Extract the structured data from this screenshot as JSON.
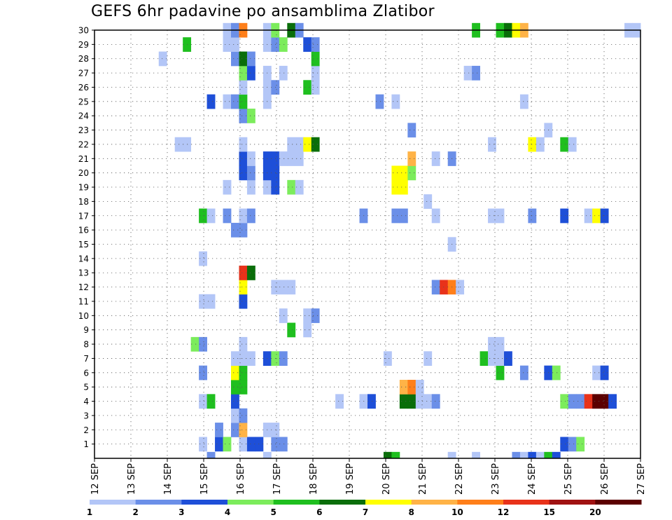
{
  "chart_data": {
    "type": "heatmap",
    "title": "GEFS 6hr padavine po ansamblima Zlatibor",
    "xlabel": "",
    "ylabel": "",
    "y_tick_labels": [
      "1",
      "2",
      "3",
      "4",
      "5",
      "6",
      "7",
      "8",
      "9",
      "10",
      "11",
      "12",
      "13",
      "14",
      "15",
      "16",
      "17",
      "18",
      "19",
      "20",
      "21",
      "22",
      "23",
      "24",
      "25",
      "26",
      "27",
      "28",
      "29",
      "30"
    ],
    "x_tick_labels": [
      "12 SEP",
      "13 SEP",
      "14 SEP",
      "15 SEP",
      "16 SEP",
      "17 SEP",
      "18 SEP",
      "19 SEP",
      "20 SEP",
      "21 SEP",
      "22 SEP",
      "23 SEP",
      "24 SEP",
      "25 SEP",
      "26 SEP",
      "27 SEP"
    ],
    "x_range": [
      "12 SEP 00Z",
      "27 SEP 00Z"
    ],
    "x_step_hours": 6,
    "y_range": [
      0,
      30
    ],
    "grid": true,
    "grid_style": "dotted",
    "legend": "colorbar-bottom",
    "colorbar": {
      "labels": [
        "1",
        "2",
        "3",
        "4",
        "5",
        "6",
        "7",
        "8",
        "10",
        "12",
        "15",
        "20"
      ],
      "colors": [
        "#b3c6f7",
        "#6b8fe8",
        "#1e4fd8",
        "#7cec5c",
        "#1fbf1f",
        "#0a6e0a",
        "#ffff00",
        "#ffb347",
        "#ff7f1a",
        "#e8321a",
        "#a01212",
        "#5c0000"
      ]
    },
    "cell_value_key": "class index into colorbar.colors (0 = 1-2 mm, 11 = >20 mm)",
    "cells": [
      [
        13,
        1,
        0
      ],
      [
        15,
        1,
        2
      ],
      [
        16,
        1,
        3
      ],
      [
        18,
        1,
        0
      ],
      [
        19,
        1,
        2
      ],
      [
        20,
        1,
        2
      ],
      [
        22,
        1,
        1
      ],
      [
        23,
        1,
        1
      ],
      [
        58,
        1,
        2
      ],
      [
        59,
        1,
        1
      ],
      [
        60,
        1,
        3
      ],
      [
        71,
        1,
        0
      ],
      [
        72,
        1,
        1
      ],
      [
        15,
        2,
        1
      ],
      [
        17,
        2,
        1
      ],
      [
        18,
        2,
        7
      ],
      [
        21,
        2,
        0
      ],
      [
        22,
        2,
        0
      ],
      [
        17,
        3,
        0
      ],
      [
        18,
        3,
        1
      ],
      [
        13,
        4,
        0
      ],
      [
        14,
        4,
        4
      ],
      [
        17,
        4,
        2
      ],
      [
        30,
        4,
        0
      ],
      [
        33,
        4,
        0
      ],
      [
        34,
        4,
        2
      ],
      [
        38,
        4,
        5
      ],
      [
        39,
        4,
        5
      ],
      [
        40,
        4,
        0
      ],
      [
        41,
        4,
        0
      ],
      [
        42,
        4,
        1
      ],
      [
        58,
        4,
        3
      ],
      [
        59,
        4,
        1
      ],
      [
        60,
        4,
        1
      ],
      [
        61,
        4,
        9
      ],
      [
        62,
        4,
        11
      ],
      [
        63,
        4,
        11
      ],
      [
        64,
        4,
        2
      ],
      [
        17,
        5,
        4
      ],
      [
        18,
        5,
        4
      ],
      [
        38,
        5,
        7
      ],
      [
        39,
        5,
        8
      ],
      [
        40,
        5,
        0
      ],
      [
        13,
        6,
        1
      ],
      [
        17,
        6,
        6
      ],
      [
        18,
        6,
        4
      ],
      [
        50,
        6,
        4
      ],
      [
        53,
        6,
        1
      ],
      [
        56,
        6,
        2
      ],
      [
        57,
        6,
        3
      ],
      [
        62,
        6,
        0
      ],
      [
        63,
        6,
        2
      ],
      [
        17,
        7,
        0
      ],
      [
        18,
        7,
        0
      ],
      [
        19,
        7,
        0
      ],
      [
        21,
        7,
        2
      ],
      [
        22,
        7,
        3
      ],
      [
        23,
        7,
        1
      ],
      [
        36,
        7,
        0
      ],
      [
        41,
        7,
        0
      ],
      [
        48,
        7,
        4
      ],
      [
        49,
        7,
        0
      ],
      [
        50,
        7,
        0
      ],
      [
        51,
        7,
        2
      ],
      [
        12,
        8,
        3
      ],
      [
        13,
        8,
        1
      ],
      [
        18,
        8,
        0
      ],
      [
        49,
        8,
        0
      ],
      [
        50,
        8,
        0
      ],
      [
        24,
        9,
        4
      ],
      [
        26,
        9,
        0
      ],
      [
        23,
        10,
        0
      ],
      [
        26,
        10,
        0
      ],
      [
        27,
        10,
        1
      ],
      [
        18,
        11,
        2
      ],
      [
        13,
        11,
        0
      ],
      [
        14,
        11,
        0
      ],
      [
        18,
        12,
        6
      ],
      [
        22,
        12,
        0
      ],
      [
        23,
        12,
        0
      ],
      [
        24,
        12,
        0
      ],
      [
        42,
        12,
        1
      ],
      [
        43,
        12,
        9
      ],
      [
        44,
        12,
        8
      ],
      [
        45,
        12,
        0
      ],
      [
        18,
        13,
        9
      ],
      [
        19,
        13,
        5
      ],
      [
        13,
        14,
        0
      ],
      [
        44,
        15,
        0
      ],
      [
        17,
        16,
        1
      ],
      [
        18,
        16,
        1
      ],
      [
        13,
        17,
        4
      ],
      [
        14,
        17,
        0
      ],
      [
        16,
        17,
        1
      ],
      [
        18,
        17,
        0
      ],
      [
        19,
        17,
        1
      ],
      [
        33,
        17,
        1
      ],
      [
        37,
        17,
        1
      ],
      [
        38,
        17,
        1
      ],
      [
        42,
        17,
        0
      ],
      [
        49,
        17,
        0
      ],
      [
        50,
        17,
        0
      ],
      [
        54,
        17,
        1
      ],
      [
        58,
        17,
        2
      ],
      [
        61,
        17,
        0
      ],
      [
        62,
        17,
        6
      ],
      [
        63,
        17,
        2
      ],
      [
        41,
        18,
        0
      ],
      [
        16,
        19,
        0
      ],
      [
        19,
        19,
        0
      ],
      [
        21,
        19,
        0
      ],
      [
        22,
        19,
        2
      ],
      [
        24,
        19,
        3
      ],
      [
        25,
        19,
        0
      ],
      [
        37,
        19,
        6
      ],
      [
        38,
        19,
        6
      ],
      [
        18,
        20,
        2
      ],
      [
        19,
        20,
        1
      ],
      [
        21,
        20,
        2
      ],
      [
        22,
        20,
        2
      ],
      [
        37,
        20,
        6
      ],
      [
        38,
        20,
        6
      ],
      [
        39,
        20,
        3
      ],
      [
        18,
        21,
        2
      ],
      [
        19,
        21,
        0
      ],
      [
        21,
        21,
        2
      ],
      [
        22,
        21,
        2
      ],
      [
        23,
        21,
        0
      ],
      [
        24,
        21,
        0
      ],
      [
        25,
        21,
        0
      ],
      [
        39,
        21,
        7
      ],
      [
        42,
        21,
        0
      ],
      [
        44,
        21,
        1
      ],
      [
        10,
        22,
        0
      ],
      [
        11,
        22,
        0
      ],
      [
        18,
        22,
        0
      ],
      [
        24,
        22,
        0
      ],
      [
        25,
        22,
        0
      ],
      [
        26,
        22,
        6
      ],
      [
        27,
        22,
        5
      ],
      [
        49,
        22,
        0
      ],
      [
        54,
        22,
        6
      ],
      [
        55,
        22,
        0
      ],
      [
        58,
        22,
        4
      ],
      [
        59,
        22,
        0
      ],
      [
        56,
        23,
        0
      ],
      [
        39,
        23,
        1
      ],
      [
        18,
        24,
        1
      ],
      [
        19,
        24,
        3
      ],
      [
        14,
        25,
        2
      ],
      [
        16,
        25,
        0
      ],
      [
        17,
        25,
        1
      ],
      [
        18,
        25,
        4
      ],
      [
        21,
        25,
        0
      ],
      [
        35,
        25,
        1
      ],
      [
        37,
        25,
        0
      ],
      [
        53,
        25,
        0
      ],
      [
        18,
        26,
        0
      ],
      [
        21,
        26,
        0
      ],
      [
        22,
        26,
        1
      ],
      [
        26,
        26,
        4
      ],
      [
        27,
        26,
        0
      ],
      [
        18,
        27,
        3
      ],
      [
        19,
        27,
        2
      ],
      [
        21,
        27,
        0
      ],
      [
        23,
        27,
        0
      ],
      [
        27,
        27,
        0
      ],
      [
        46,
        27,
        0
      ],
      [
        47,
        27,
        1
      ],
      [
        8,
        28,
        0
      ],
      [
        17,
        28,
        1
      ],
      [
        18,
        28,
        5
      ],
      [
        19,
        28,
        1
      ],
      [
        27,
        28,
        4
      ],
      [
        11,
        29,
        4
      ],
      [
        16,
        29,
        0
      ],
      [
        17,
        29,
        0
      ],
      [
        21,
        29,
        0
      ],
      [
        22,
        29,
        1
      ],
      [
        23,
        29,
        3
      ],
      [
        26,
        29,
        2
      ],
      [
        27,
        29,
        1
      ],
      [
        16,
        30,
        0
      ],
      [
        17,
        30,
        1
      ],
      [
        18,
        30,
        8
      ],
      [
        21,
        30,
        0
      ],
      [
        22,
        30,
        3
      ],
      [
        24,
        30,
        5
      ],
      [
        25,
        30,
        1
      ],
      [
        47,
        30,
        4
      ],
      [
        50,
        30,
        4
      ],
      [
        51,
        30,
        5
      ],
      [
        52,
        30,
        6
      ],
      [
        53,
        30,
        7
      ],
      [
        66,
        30,
        0
      ],
      [
        67,
        30,
        0
      ],
      [
        14,
        0,
        1
      ],
      [
        21,
        0,
        0
      ],
      [
        36,
        0,
        5
      ],
      [
        37,
        0,
        4
      ],
      [
        44,
        0,
        0
      ],
      [
        47,
        0,
        0
      ],
      [
        52,
        0,
        1
      ],
      [
        53,
        0,
        0
      ],
      [
        54,
        0,
        2
      ],
      [
        55,
        0,
        0
      ],
      [
        56,
        0,
        4
      ],
      [
        57,
        0,
        2
      ]
    ]
  }
}
